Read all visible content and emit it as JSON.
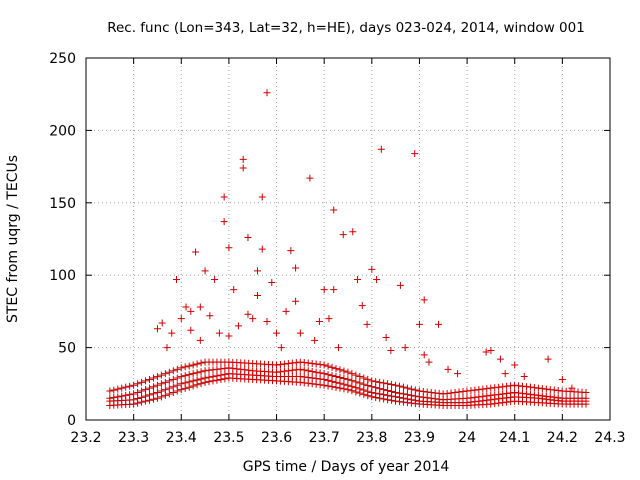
{
  "chart_data": {
    "type": "scatter",
    "title": "Rec. func (Lon=343, Lat=32, h=HE), days 023-024, 2014, window 001",
    "xlabel": "GPS time / Days of year 2014",
    "ylabel": "STEC from uqrg / TECUs",
    "xlim": [
      23.2,
      24.3
    ],
    "ylim": [
      0,
      250
    ],
    "xticks": [
      23.2,
      23.3,
      23.4,
      23.5,
      23.6,
      23.7,
      23.8,
      23.9,
      24.0,
      24.1,
      24.2,
      24.3
    ],
    "xtick_labels": [
      "23.2",
      "23.3",
      "23.4",
      "23.5",
      "23.6",
      "23.7",
      "23.8",
      "23.9",
      "24",
      "24.1",
      "24.2",
      "24.3"
    ],
    "yticks": [
      0,
      50,
      100,
      150,
      200,
      250
    ],
    "ytick_labels": [
      "0",
      "50",
      "100",
      "150",
      "200",
      "250"
    ],
    "grid": true,
    "marker": "+",
    "color": "#cc0000",
    "x_sampling": {
      "start": 23.25,
      "end": 24.25,
      "step": 0.00833
    },
    "baseline_tracks": [
      {
        "x": [
          23.25,
          23.3,
          23.35,
          23.4,
          23.45,
          23.5,
          23.55,
          23.6,
          23.65,
          23.7,
          23.75,
          23.8,
          23.85,
          23.9,
          23.95,
          24.0,
          24.05,
          24.1,
          24.15,
          24.2,
          24.25
        ],
        "y": [
          10,
          11,
          15,
          21,
          26,
          29,
          28,
          27,
          26,
          24,
          21,
          16,
          13,
          11,
          10,
          10,
          11,
          13,
          12,
          11,
          11
        ]
      },
      {
        "x": [
          23.25,
          23.3,
          23.35,
          23.4,
          23.45,
          23.5,
          23.55,
          23.6,
          23.65,
          23.7,
          23.75,
          23.8,
          23.85,
          23.9,
          23.95,
          24.0,
          24.05,
          24.1,
          24.15,
          24.2,
          24.25
        ],
        "y": [
          13,
          14,
          19,
          25,
          29,
          32,
          31,
          30,
          30,
          28,
          24,
          19,
          16,
          13,
          12,
          12,
          14,
          16,
          15,
          13,
          13
        ]
      },
      {
        "x": [
          23.25,
          23.3,
          23.35,
          23.4,
          23.45,
          23.5,
          23.55,
          23.6,
          23.65,
          23.7,
          23.75,
          23.8,
          23.85,
          23.9,
          23.95,
          24.0,
          24.05,
          24.1,
          24.15,
          24.2,
          24.25
        ],
        "y": [
          15,
          18,
          24,
          30,
          34,
          36,
          34,
          33,
          35,
          32,
          28,
          23,
          19,
          16,
          14,
          15,
          17,
          19,
          17,
          15,
          15
        ]
      },
      {
        "x": [
          23.25,
          23.3,
          23.35,
          23.4,
          23.45,
          23.5,
          23.55,
          23.6,
          23.65,
          23.7,
          23.75,
          23.8,
          23.85,
          23.9,
          23.95,
          24.0,
          24.05,
          24.1,
          24.15,
          24.2,
          24.25
        ],
        "y": [
          20,
          24,
          30,
          36,
          40,
          40,
          39,
          38,
          40,
          38,
          33,
          27,
          24,
          20,
          18,
          20,
          22,
          24,
          22,
          20,
          19
        ]
      }
    ],
    "points": [
      [
        23.35,
        63
      ],
      [
        23.36,
        67
      ],
      [
        23.37,
        50
      ],
      [
        23.38,
        60
      ],
      [
        23.39,
        97
      ],
      [
        23.4,
        70
      ],
      [
        23.41,
        78
      ],
      [
        23.42,
        75
      ],
      [
        23.42,
        62
      ],
      [
        23.43,
        116
      ],
      [
        23.44,
        78
      ],
      [
        23.44,
        55
      ],
      [
        23.45,
        103
      ],
      [
        23.46,
        72
      ],
      [
        23.47,
        97
      ],
      [
        23.48,
        60
      ],
      [
        23.49,
        137
      ],
      [
        23.49,
        154
      ],
      [
        23.5,
        119
      ],
      [
        23.5,
        58
      ],
      [
        23.51,
        90
      ],
      [
        23.52,
        65
      ],
      [
        23.53,
        180
      ],
      [
        23.53,
        174
      ],
      [
        23.54,
        126
      ],
      [
        23.54,
        73
      ],
      [
        23.55,
        70
      ],
      [
        23.56,
        103
      ],
      [
        23.56,
        86
      ],
      [
        23.57,
        154
      ],
      [
        23.57,
        118
      ],
      [
        23.58,
        68
      ],
      [
        23.58,
        226
      ],
      [
        23.59,
        95
      ],
      [
        23.6,
        60
      ],
      [
        23.61,
        50
      ],
      [
        23.62,
        75
      ],
      [
        23.63,
        117
      ],
      [
        23.64,
        105
      ],
      [
        23.64,
        82
      ],
      [
        23.65,
        60
      ],
      [
        23.67,
        167
      ],
      [
        23.68,
        55
      ],
      [
        23.69,
        68
      ],
      [
        23.7,
        90
      ],
      [
        23.71,
        70
      ],
      [
        23.72,
        145
      ],
      [
        23.72,
        90
      ],
      [
        23.73,
        50
      ],
      [
        23.74,
        128
      ],
      [
        23.76,
        130
      ],
      [
        23.77,
        97
      ],
      [
        23.78,
        79
      ],
      [
        23.79,
        66
      ],
      [
        23.8,
        104
      ],
      [
        23.81,
        97
      ],
      [
        23.82,
        187
      ],
      [
        23.83,
        57
      ],
      [
        23.84,
        48
      ],
      [
        23.86,
        93
      ],
      [
        23.87,
        50
      ],
      [
        23.89,
        184
      ],
      [
        23.9,
        66
      ],
      [
        23.91,
        83
      ],
      [
        23.91,
        45
      ],
      [
        23.92,
        40
      ],
      [
        23.94,
        66
      ],
      [
        23.96,
        35
      ],
      [
        23.98,
        32
      ],
      [
        24.04,
        47
      ],
      [
        24.05,
        48
      ],
      [
        24.07,
        42
      ],
      [
        24.08,
        32
      ],
      [
        24.1,
        38
      ],
      [
        24.12,
        30
      ],
      [
        24.17,
        42
      ],
      [
        24.2,
        28
      ],
      [
        24.22,
        22
      ]
    ]
  }
}
